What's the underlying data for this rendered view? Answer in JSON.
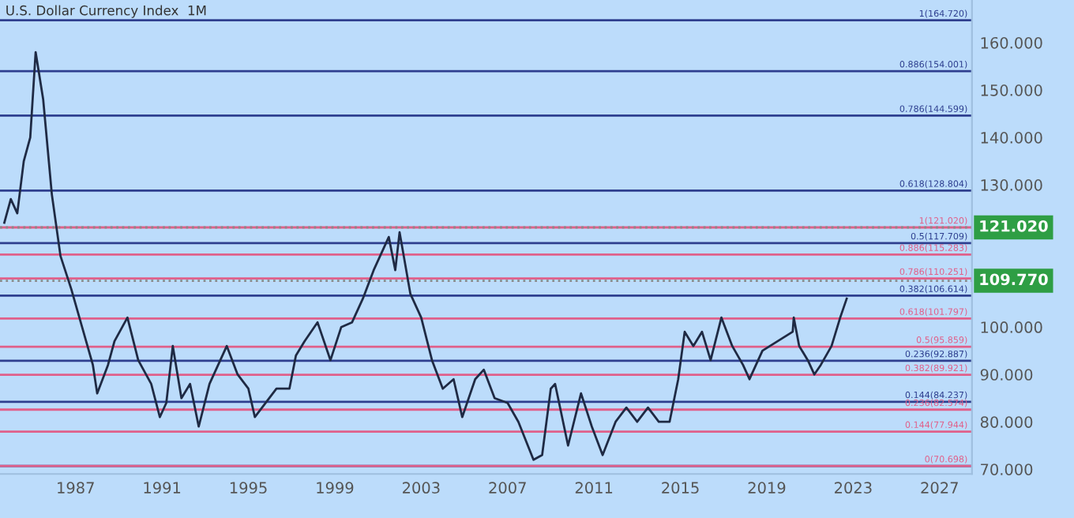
{
  "chart_data": {
    "type": "line",
    "title": "U.S. Dollar Currency Index  1M",
    "x": [
      1983.7,
      1984.0,
      1984.3,
      1984.6,
      1984.9,
      1985.15,
      1985.5,
      1985.9,
      1986.3,
      1986.8,
      1987.3,
      1987.8,
      1988.0,
      1988.5,
      1988.8,
      1989.4,
      1989.9,
      1990.5,
      1990.9,
      1991.2,
      1991.5,
      1991.9,
      1992.3,
      1992.7,
      1993.2,
      1993.7,
      1994.0,
      1994.5,
      1995.0,
      1995.3,
      1995.8,
      1996.3,
      1996.9,
      1997.2,
      1997.6,
      1998.2,
      1998.8,
      1999.3,
      1999.8,
      2000.3,
      2000.8,
      2001.5,
      2001.8,
      2002.0,
      2002.5,
      2003.0,
      2003.5,
      2004.0,
      2004.5,
      2004.9,
      2005.5,
      2005.9,
      2006.4,
      2007.0,
      2007.5,
      2008.2,
      2008.6,
      2009.0,
      2009.2,
      2009.8,
      2010.4,
      2010.9,
      2011.4,
      2012.0,
      2012.5,
      2013.0,
      2013.5,
      2014.0,
      2014.5,
      2014.9,
      2015.2,
      2015.6,
      2016.0,
      2016.4,
      2016.9,
      2017.4,
      2017.9,
      2018.2,
      2018.8,
      2019.5,
      2020.2,
      2020.25,
      2020.5,
      2020.9,
      2021.2,
      2021.5,
      2022.0,
      2022.4,
      2022.7
    ],
    "series": [
      {
        "color": "#1f2a44",
        "values": [
          122,
          127,
          124,
          135,
          140,
          158,
          148,
          128,
          115,
          108,
          100,
          92,
          86,
          92,
          97,
          102,
          93,
          88,
          81,
          84,
          96,
          85,
          88,
          79,
          88,
          93,
          96,
          90,
          87,
          81,
          84,
          87,
          87,
          94,
          97,
          101,
          93,
          100,
          101,
          106,
          112,
          119,
          112,
          120,
          107,
          102,
          93,
          87,
          89,
          81,
          89,
          91,
          85,
          84,
          80,
          72,
          73,
          87,
          88,
          75,
          86,
          79,
          73,
          80,
          83,
          80,
          83,
          80,
          80,
          89,
          99,
          96,
          99,
          93,
          102,
          96,
          92,
          89,
          95,
          97,
          99,
          102,
          96,
          93,
          90,
          92,
          96,
          102,
          106
        ]
      }
    ],
    "xlim": [
      1983.5,
      2028.5
    ],
    "ylim": [
      69,
      169
    ],
    "xticks": [
      1987,
      1991,
      1995,
      1999,
      2003,
      2007,
      2011,
      2015,
      2019,
      2023,
      2027
    ],
    "yticks": [
      {
        "value": 70,
        "label": "70.000"
      },
      {
        "value": 80,
        "label": "80.000"
      },
      {
        "value": 90,
        "label": "90.000"
      },
      {
        "value": 100,
        "label": "100.000"
      },
      {
        "value": 130,
        "label": "130.000"
      },
      {
        "value": 140,
        "label": "140.000"
      },
      {
        "value": 150,
        "label": "150.000"
      },
      {
        "value": 160,
        "label": "160.000"
      }
    ],
    "grid": false,
    "legend": false,
    "ref_lines": [
      {
        "axis": "y",
        "value": 164.72,
        "label": "1(164.720)",
        "color": "#2e3f8f",
        "line_style": "solid"
      },
      {
        "axis": "y",
        "value": 154.001,
        "label": "0.886(154.001)",
        "color": "#2e3f8f",
        "line_style": "solid"
      },
      {
        "axis": "y",
        "value": 144.599,
        "label": "0.786(144.599)",
        "color": "#2e3f8f",
        "line_style": "solid"
      },
      {
        "axis": "y",
        "value": 128.804,
        "label": "0.618(128.804)",
        "color": "#2e3f8f",
        "line_style": "solid"
      },
      {
        "axis": "y",
        "value": 117.709,
        "label": "0.5(117.709)",
        "color": "#2e3f8f",
        "line_style": "solid"
      },
      {
        "axis": "y",
        "value": 106.614,
        "label": "0.382(106.614)",
        "color": "#2e3f8f",
        "line_style": "solid"
      },
      {
        "axis": "y",
        "value": 92.887,
        "label": "0.236(92.887)",
        "color": "#2e3f8f",
        "line_style": "solid"
      },
      {
        "axis": "y",
        "value": 84.237,
        "label": "0.144(84.237)",
        "color": "#2e3f8f",
        "line_style": "solid"
      },
      {
        "axis": "y",
        "value": 70.698,
        "label": null,
        "color": "#2e3f8f",
        "line_style": "solid"
      },
      {
        "axis": "y",
        "value": 121.02,
        "label": "1(121.020)",
        "color": "#e0608a",
        "line_style": "solid"
      },
      {
        "axis": "y",
        "value": 121.02,
        "label": "121.020",
        "color": "#8a8a8a",
        "line_style": "dotted"
      },
      {
        "axis": "y",
        "value": 115.283,
        "label": "0.886(115.283)",
        "color": "#e0608a",
        "line_style": "solid"
      },
      {
        "axis": "y",
        "value": 110.251,
        "label": "0.786(110.251)",
        "color": "#e0608a",
        "line_style": "solid"
      },
      {
        "axis": "y",
        "value": 109.77,
        "label": "109.770",
        "color": "#8a8a8a",
        "line_style": "dotted"
      },
      {
        "axis": "y",
        "value": 101.797,
        "label": "0.618(101.797)",
        "color": "#e0608a",
        "line_style": "solid"
      },
      {
        "axis": "y",
        "value": 95.859,
        "label": "0.5(95.859)",
        "color": "#e0608a",
        "line_style": "solid"
      },
      {
        "axis": "y",
        "value": 89.921,
        "label": "0.382(89.921)",
        "color": "#e0608a",
        "line_style": "solid"
      },
      {
        "axis": "y",
        "value": 82.574,
        "label": "0.236(82.574)",
        "color": "#e0608a",
        "line_style": "solid"
      },
      {
        "axis": "y",
        "value": 77.944,
        "label": "0.144(77.944)",
        "color": "#e0608a",
        "line_style": "solid"
      },
      {
        "axis": "y",
        "value": 70.698,
        "label": "0(70.698)",
        "color": "#e0608a",
        "line_style": "solid"
      }
    ]
  }
}
